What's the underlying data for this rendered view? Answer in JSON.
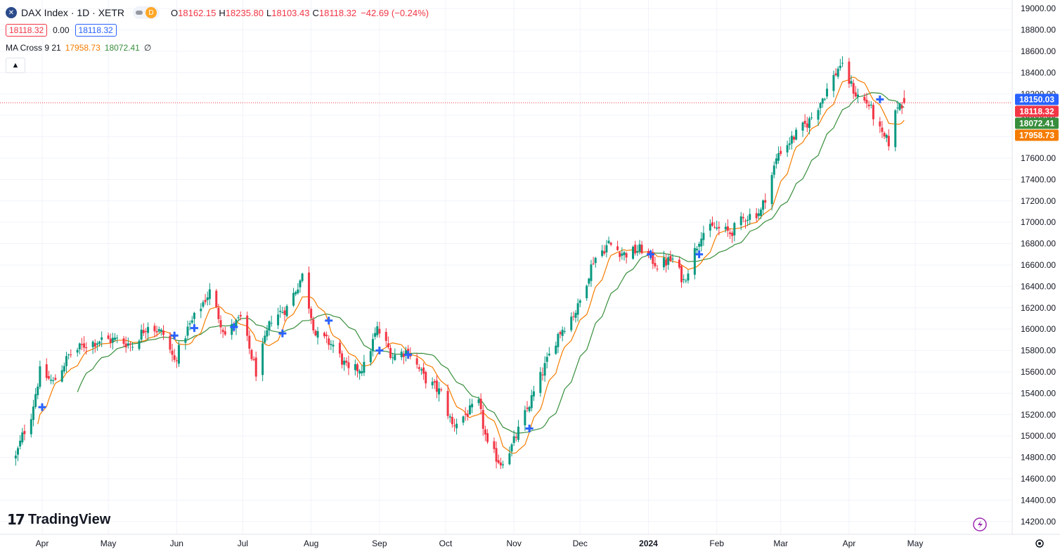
{
  "header": {
    "symbol_icon": "✕",
    "title": "DAX Index · 1D · XETR",
    "pill_letter": "D",
    "ohlc": {
      "o_label": "O",
      "o": "18162.15",
      "h_label": "H",
      "h": "18235.80",
      "l_label": "L",
      "l": "18103.43",
      "c_label": "C",
      "c": "18118.32",
      "change": "−42.69 (−0.24%)"
    },
    "bid": "18118.32",
    "spread": "0.00",
    "ask": "18118.32"
  },
  "indicator": {
    "name": "MA Cross 9 21",
    "fast": "17958.73",
    "slow": "18072.41",
    "extra": "∅"
  },
  "collapse_icon": "chevron-up-icon",
  "collapse_glyph": "▲",
  "brand": {
    "mark": "17",
    "text": "TradingView"
  },
  "colors": {
    "up": "#089981",
    "down": "#f23645",
    "fast": "#f57c00",
    "slow": "#388e3c",
    "cross": "#2962ff",
    "price_line": "#f23645"
  },
  "price_badges": [
    {
      "value": "18150.03",
      "color": "#2962ff"
    },
    {
      "value": "18118.32",
      "color": "#f23645"
    },
    {
      "value": "18072.41",
      "color": "#388e3c"
    },
    {
      "value": "17958.73",
      "color": "#f57c00"
    }
  ],
  "chart_data": {
    "type": "candlestick",
    "instrument": "DAX Index",
    "interval": "1D",
    "exchange": "XETR",
    "ylim": [
      14080,
      19080
    ],
    "y_ticks": [
      14200,
      14400,
      14600,
      14800,
      15000,
      15200,
      15400,
      15600,
      15800,
      16000,
      16200,
      16400,
      16600,
      16800,
      17000,
      17200,
      17400,
      17600,
      17800,
      18000,
      18200,
      18400,
      18600,
      18800,
      19000
    ],
    "x_labels": [
      {
        "label": "Apr",
        "date": "2023-04-01"
      },
      {
        "label": "May",
        "date": "2023-05-01"
      },
      {
        "label": "Jun",
        "date": "2023-06-01"
      },
      {
        "label": "Jul",
        "date": "2023-07-01"
      },
      {
        "label": "Aug",
        "date": "2023-08-01"
      },
      {
        "label": "Sep",
        "date": "2023-09-01"
      },
      {
        "label": "Oct",
        "date": "2023-10-01"
      },
      {
        "label": "Nov",
        "date": "2023-11-01"
      },
      {
        "label": "Dec",
        "date": "2023-12-01"
      },
      {
        "label": "2024",
        "date": "2024-01-01",
        "bold": true
      },
      {
        "label": "Feb",
        "date": "2024-02-01"
      },
      {
        "label": "Mar",
        "date": "2024-03-01"
      },
      {
        "label": "Apr",
        "date": "2024-04-01"
      },
      {
        "label": "May",
        "date": "2024-05-01"
      }
    ],
    "close_path": [
      [
        "2023-03-20",
        14800
      ],
      [
        "2023-03-23",
        15000
      ],
      [
        "2023-03-27",
        15200
      ],
      [
        "2023-03-31",
        15600
      ],
      [
        "2023-04-06",
        15500
      ],
      [
        "2023-04-13",
        15750
      ],
      [
        "2023-04-20",
        15850
      ],
      [
        "2023-04-28",
        15900
      ],
      [
        "2023-05-05",
        15900
      ],
      [
        "2023-05-12",
        15850
      ],
      [
        "2023-05-19",
        16050
      ],
      [
        "2023-05-26",
        15950
      ],
      [
        "2023-05-31",
        15700
      ],
      [
        "2023-06-06",
        16000
      ],
      [
        "2023-06-13",
        16250
      ],
      [
        "2023-06-16",
        16350
      ],
      [
        "2023-06-23",
        15950
      ],
      [
        "2023-06-30",
        16100
      ],
      [
        "2023-07-07",
        15600
      ],
      [
        "2023-07-14",
        16100
      ],
      [
        "2023-07-21",
        16200
      ],
      [
        "2023-07-28",
        16500
      ],
      [
        "2023-08-03",
        15950
      ],
      [
        "2023-08-11",
        15850
      ],
      [
        "2023-08-18",
        15600
      ],
      [
        "2023-08-25",
        15650
      ],
      [
        "2023-08-31",
        16000
      ],
      [
        "2023-09-07",
        15750
      ],
      [
        "2023-09-14",
        15800
      ],
      [
        "2023-09-21",
        15550
      ],
      [
        "2023-09-29",
        15400
      ],
      [
        "2023-10-04",
        15100
      ],
      [
        "2023-10-10",
        15200
      ],
      [
        "2023-10-16",
        15300
      ],
      [
        "2023-10-20",
        14900
      ],
      [
        "2023-10-26",
        14750
      ],
      [
        "2023-10-31",
        14900
      ],
      [
        "2023-11-06",
        15200
      ],
      [
        "2023-11-14",
        15600
      ],
      [
        "2023-11-21",
        15950
      ],
      [
        "2023-11-30",
        16200
      ],
      [
        "2023-12-07",
        16650
      ],
      [
        "2023-12-14",
        16800
      ],
      [
        "2023-12-21",
        16700
      ],
      [
        "2023-12-29",
        16750
      ],
      [
        "2024-01-05",
        16600
      ],
      [
        "2024-01-12",
        16650
      ],
      [
        "2024-01-17",
        16450
      ],
      [
        "2024-01-25",
        16900
      ],
      [
        "2024-01-31",
        16950
      ],
      [
        "2024-02-07",
        16900
      ],
      [
        "2024-02-14",
        17050
      ],
      [
        "2024-02-21",
        17100
      ],
      [
        "2024-02-29",
        17650
      ],
      [
        "2024-03-07",
        17800
      ],
      [
        "2024-03-14",
        17950
      ],
      [
        "2024-03-21",
        18200
      ],
      [
        "2024-03-28",
        18480
      ],
      [
        "2024-04-04",
        18200
      ],
      [
        "2024-04-10",
        18100
      ],
      [
        "2024-04-16",
        17800
      ],
      [
        "2024-04-19",
        17750
      ],
      [
        "2024-04-23",
        18100
      ],
      [
        "2024-04-26",
        18118.32
      ]
    ],
    "last_bar": {
      "date": "2024-04-26",
      "open": 18162.15,
      "high": 18235.8,
      "low": 18103.43,
      "close": 18118.32
    },
    "ma_fast_period": 9,
    "ma_slow_period": 21,
    "ma_fast_last": 17958.73,
    "ma_slow_last": 18072.41,
    "current_price": 18118.32,
    "cross_markers": [
      [
        "2023-04-01",
        15270
      ],
      [
        "2023-05-31",
        15940
      ],
      [
        "2023-06-09",
        16010
      ],
      [
        "2023-06-27",
        16020
      ],
      [
        "2023-07-19",
        15960
      ],
      [
        "2023-08-09",
        16080
      ],
      [
        "2023-09-01",
        15800
      ],
      [
        "2023-09-14",
        15760
      ],
      [
        "2023-11-08",
        15070
      ],
      [
        "2024-01-02",
        16700
      ],
      [
        "2024-01-24",
        16700
      ],
      [
        "2024-04-15",
        18150
      ]
    ]
  }
}
